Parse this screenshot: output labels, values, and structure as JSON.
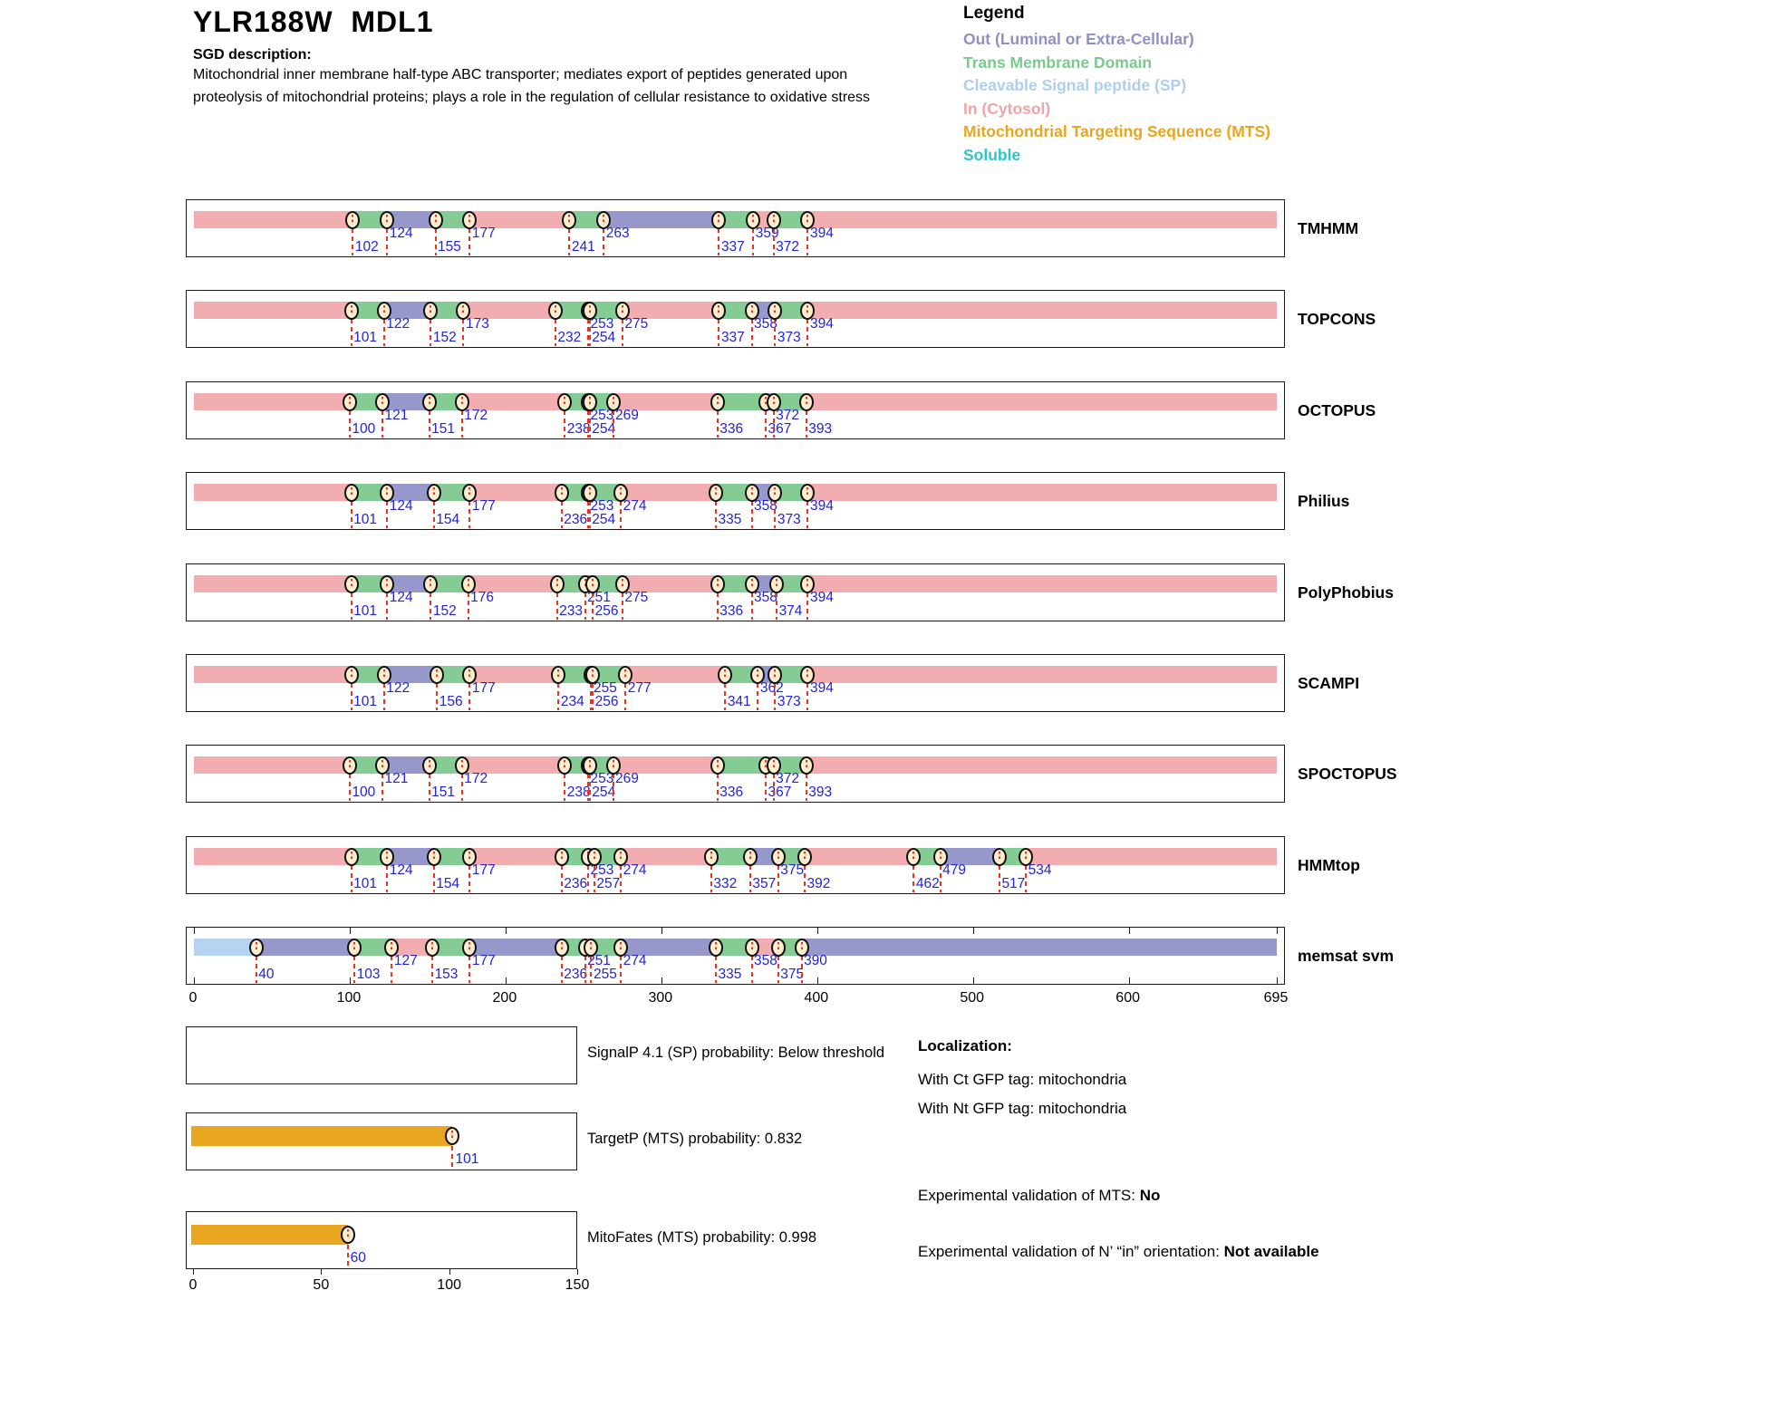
{
  "header": {
    "title": "YLR188W  MDL1",
    "sgd_label": "SGD description:",
    "description_lines": [
      "Mitochondrial inner membrane half-type ABC transporter; mediates export of peptides generated upon",
      "proteolysis of mitochondrial proteins; plays a role in the regulation of cellular resistance to oxidative stress"
    ]
  },
  "legend": {
    "title": "Legend",
    "items": [
      {
        "label": "Out (Luminal or Extra-Cellular)",
        "color": "#8F90C5"
      },
      {
        "label": "Trans Membrane Domain",
        "color": "#7BC98C"
      },
      {
        "label": "Cleavable Signal peptide (SP)",
        "color": "#AECEF0"
      },
      {
        "label": "In (Cytosol)",
        "color": "#F1A3A6"
      },
      {
        "label": "Mitochondrial Targeting Sequence (MTS)",
        "color": "#E9A51E"
      },
      {
        "label": "Soluble",
        "color": "#2EC5C9"
      }
    ]
  },
  "chart_data": {
    "type": "topology-tracks",
    "axis": {
      "min": 0,
      "max": 695,
      "ticks": [
        0,
        100,
        200,
        300,
        400,
        500,
        600,
        695
      ]
    },
    "palette": {
      "in": "#F2ADB1",
      "tm": "#84CC93",
      "out": "#9697CB",
      "sp": "#B7D3F2",
      "mts": "#E9A620"
    },
    "marker_style": {
      "fill": "#FAEDD0",
      "number_color": "#2323D7",
      "dash_color": "#EA3323"
    },
    "tracks": [
      {
        "name": "TMHMM",
        "segments": [
          [
            0,
            102,
            "in"
          ],
          [
            102,
            124,
            "tm"
          ],
          [
            124,
            155,
            "out"
          ],
          [
            155,
            177,
            "tm"
          ],
          [
            177,
            241,
            "in"
          ],
          [
            241,
            263,
            "tm"
          ],
          [
            263,
            337,
            "out"
          ],
          [
            337,
            359,
            "tm"
          ],
          [
            359,
            372,
            "in"
          ],
          [
            372,
            394,
            "tm"
          ],
          [
            394,
            695,
            "in"
          ]
        ],
        "markers": [
          [
            102,
            "l"
          ],
          [
            124,
            "h"
          ],
          [
            155,
            "l"
          ],
          [
            177,
            "h"
          ],
          [
            241,
            "l"
          ],
          [
            263,
            "h"
          ],
          [
            337,
            "l"
          ],
          [
            359,
            "h"
          ],
          [
            372,
            "l"
          ],
          [
            394,
            "h"
          ]
        ]
      },
      {
        "name": "TOPCONS",
        "segments": [
          [
            0,
            101,
            "in"
          ],
          [
            101,
            122,
            "tm"
          ],
          [
            122,
            152,
            "out"
          ],
          [
            152,
            173,
            "tm"
          ],
          [
            173,
            232,
            "in"
          ],
          [
            232,
            253,
            "tm"
          ],
          [
            253,
            254,
            "out"
          ],
          [
            254,
            275,
            "tm"
          ],
          [
            275,
            337,
            "in"
          ],
          [
            337,
            358,
            "tm"
          ],
          [
            358,
            373,
            "out"
          ],
          [
            373,
            394,
            "tm"
          ],
          [
            394,
            695,
            "in"
          ]
        ],
        "markers": [
          [
            101,
            "l"
          ],
          [
            122,
            "h"
          ],
          [
            152,
            "l"
          ],
          [
            173,
            "h"
          ],
          [
            232,
            "l"
          ],
          [
            253,
            "h"
          ],
          [
            254,
            "l"
          ],
          [
            275,
            "h"
          ],
          [
            337,
            "l"
          ],
          [
            358,
            "h"
          ],
          [
            373,
            "l"
          ],
          [
            394,
            "h"
          ]
        ]
      },
      {
        "name": "OCTOPUS",
        "segments": [
          [
            0,
            100,
            "in"
          ],
          [
            100,
            121,
            "tm"
          ],
          [
            121,
            151,
            "out"
          ],
          [
            151,
            172,
            "tm"
          ],
          [
            172,
            238,
            "in"
          ],
          [
            238,
            253,
            "tm"
          ],
          [
            253,
            254,
            "out"
          ],
          [
            254,
            269,
            "tm"
          ],
          [
            269,
            336,
            "in"
          ],
          [
            336,
            367,
            "tm"
          ],
          [
            367,
            372,
            "out"
          ],
          [
            372,
            393,
            "tm"
          ],
          [
            393,
            695,
            "in"
          ]
        ],
        "markers": [
          [
            100,
            "l"
          ],
          [
            121,
            "h"
          ],
          [
            151,
            "l"
          ],
          [
            172,
            "h"
          ],
          [
            238,
            "l"
          ],
          [
            253,
            "h"
          ],
          [
            254,
            "l"
          ],
          [
            269,
            "h"
          ],
          [
            336,
            "l"
          ],
          [
            367,
            "l"
          ],
          [
            372,
            "h"
          ],
          [
            393,
            "l"
          ]
        ]
      },
      {
        "name": "Philius",
        "segments": [
          [
            0,
            101,
            "in"
          ],
          [
            101,
            124,
            "tm"
          ],
          [
            124,
            154,
            "out"
          ],
          [
            154,
            177,
            "tm"
          ],
          [
            177,
            236,
            "in"
          ],
          [
            236,
            253,
            "tm"
          ],
          [
            253,
            254,
            "out"
          ],
          [
            254,
            274,
            "tm"
          ],
          [
            274,
            335,
            "in"
          ],
          [
            335,
            358,
            "tm"
          ],
          [
            358,
            373,
            "out"
          ],
          [
            373,
            394,
            "tm"
          ],
          [
            394,
            695,
            "in"
          ]
        ],
        "markers": [
          [
            101,
            "l"
          ],
          [
            124,
            "h"
          ],
          [
            154,
            "l"
          ],
          [
            177,
            "h"
          ],
          [
            236,
            "l"
          ],
          [
            253,
            "h"
          ],
          [
            254,
            "l"
          ],
          [
            274,
            "h"
          ],
          [
            335,
            "l"
          ],
          [
            358,
            "h"
          ],
          [
            373,
            "l"
          ],
          [
            394,
            "h"
          ]
        ]
      },
      {
        "name": "PolyPhobius",
        "segments": [
          [
            0,
            101,
            "in"
          ],
          [
            101,
            124,
            "tm"
          ],
          [
            124,
            152,
            "out"
          ],
          [
            152,
            176,
            "tm"
          ],
          [
            176,
            233,
            "in"
          ],
          [
            233,
            251,
            "tm"
          ],
          [
            251,
            256,
            "out"
          ],
          [
            256,
            275,
            "tm"
          ],
          [
            275,
            336,
            "in"
          ],
          [
            336,
            358,
            "tm"
          ],
          [
            358,
            374,
            "out"
          ],
          [
            374,
            394,
            "tm"
          ],
          [
            394,
            695,
            "in"
          ]
        ],
        "markers": [
          [
            101,
            "l"
          ],
          [
            124,
            "h"
          ],
          [
            152,
            "l"
          ],
          [
            176,
            "h"
          ],
          [
            233,
            "l"
          ],
          [
            251,
            "h"
          ],
          [
            256,
            "l"
          ],
          [
            275,
            "h"
          ],
          [
            336,
            "l"
          ],
          [
            358,
            "h"
          ],
          [
            374,
            "l"
          ],
          [
            394,
            "h"
          ]
        ]
      },
      {
        "name": "SCAMPI",
        "segments": [
          [
            0,
            101,
            "in"
          ],
          [
            101,
            122,
            "tm"
          ],
          [
            122,
            156,
            "out"
          ],
          [
            156,
            177,
            "tm"
          ],
          [
            177,
            234,
            "in"
          ],
          [
            234,
            255,
            "tm"
          ],
          [
            255,
            256,
            "out"
          ],
          [
            256,
            277,
            "tm"
          ],
          [
            277,
            341,
            "in"
          ],
          [
            341,
            362,
            "tm"
          ],
          [
            362,
            373,
            "out"
          ],
          [
            373,
            394,
            "tm"
          ],
          [
            394,
            695,
            "in"
          ]
        ],
        "markers": [
          [
            101,
            "l"
          ],
          [
            122,
            "h"
          ],
          [
            156,
            "l"
          ],
          [
            177,
            "h"
          ],
          [
            234,
            "l"
          ],
          [
            255,
            "h"
          ],
          [
            256,
            "l"
          ],
          [
            277,
            "h"
          ],
          [
            341,
            "l"
          ],
          [
            362,
            "h"
          ],
          [
            373,
            "l"
          ],
          [
            394,
            "h"
          ]
        ]
      },
      {
        "name": "SPOCTOPUS",
        "segments": [
          [
            0,
            100,
            "in"
          ],
          [
            100,
            121,
            "tm"
          ],
          [
            121,
            151,
            "out"
          ],
          [
            151,
            172,
            "tm"
          ],
          [
            172,
            238,
            "in"
          ],
          [
            238,
            253,
            "tm"
          ],
          [
            253,
            254,
            "out"
          ],
          [
            254,
            269,
            "tm"
          ],
          [
            269,
            336,
            "in"
          ],
          [
            336,
            367,
            "tm"
          ],
          [
            367,
            372,
            "out"
          ],
          [
            372,
            393,
            "tm"
          ],
          [
            393,
            695,
            "in"
          ]
        ],
        "markers": [
          [
            100,
            "l"
          ],
          [
            121,
            "h"
          ],
          [
            151,
            "l"
          ],
          [
            172,
            "h"
          ],
          [
            238,
            "l"
          ],
          [
            253,
            "h"
          ],
          [
            254,
            "l"
          ],
          [
            269,
            "h"
          ],
          [
            336,
            "l"
          ],
          [
            367,
            "l"
          ],
          [
            372,
            "h"
          ],
          [
            393,
            "l"
          ]
        ]
      },
      {
        "name": "HMMtop",
        "segments": [
          [
            0,
            101,
            "in"
          ],
          [
            101,
            124,
            "tm"
          ],
          [
            124,
            154,
            "out"
          ],
          [
            154,
            177,
            "tm"
          ],
          [
            177,
            236,
            "in"
          ],
          [
            236,
            253,
            "tm"
          ],
          [
            253,
            257,
            "out"
          ],
          [
            257,
            274,
            "tm"
          ],
          [
            274,
            332,
            "in"
          ],
          [
            332,
            357,
            "tm"
          ],
          [
            357,
            375,
            "out"
          ],
          [
            375,
            392,
            "tm"
          ],
          [
            392,
            462,
            "in"
          ],
          [
            462,
            479,
            "tm"
          ],
          [
            479,
            517,
            "out"
          ],
          [
            517,
            534,
            "tm"
          ],
          [
            534,
            695,
            "in"
          ]
        ],
        "markers": [
          [
            101,
            "l"
          ],
          [
            124,
            "h"
          ],
          [
            154,
            "l"
          ],
          [
            177,
            "h"
          ],
          [
            236,
            "l"
          ],
          [
            253,
            "h"
          ],
          [
            257,
            "l"
          ],
          [
            274,
            "h"
          ],
          [
            332,
            "l"
          ],
          [
            357,
            "l"
          ],
          [
            375,
            "h"
          ],
          [
            392,
            "l"
          ],
          [
            462,
            "l"
          ],
          [
            479,
            "h"
          ],
          [
            517,
            "l"
          ],
          [
            534,
            "h"
          ]
        ]
      },
      {
        "name": "memsat svm",
        "show_ticks": true,
        "segments": [
          [
            0,
            40,
            "sp"
          ],
          [
            40,
            103,
            "out"
          ],
          [
            103,
            127,
            "tm"
          ],
          [
            127,
            153,
            "in"
          ],
          [
            153,
            177,
            "tm"
          ],
          [
            177,
            236,
            "out"
          ],
          [
            236,
            251,
            "tm"
          ],
          [
            251,
            255,
            "in"
          ],
          [
            255,
            274,
            "tm"
          ],
          [
            274,
            335,
            "out"
          ],
          [
            335,
            358,
            "tm"
          ],
          [
            358,
            375,
            "in"
          ],
          [
            375,
            390,
            "tm"
          ],
          [
            390,
            695,
            "out"
          ]
        ],
        "markers": [
          [
            40,
            "l"
          ],
          [
            103,
            "l"
          ],
          [
            127,
            "h"
          ],
          [
            153,
            "l"
          ],
          [
            177,
            "h"
          ],
          [
            236,
            "l"
          ],
          [
            251,
            "h"
          ],
          [
            255,
            "l"
          ],
          [
            274,
            "h"
          ],
          [
            335,
            "l"
          ],
          [
            358,
            "h"
          ],
          [
            375,
            "l"
          ],
          [
            390,
            "h"
          ]
        ]
      }
    ],
    "panels": [
      {
        "label": "SignalP 4.1 (SP) probability: Below threshold"
      },
      {
        "label": "TargetP (MTS) probability: 0.832",
        "bar_end": 101,
        "marker": 101,
        "marker_label": "101"
      },
      {
        "label": "MitoFates (MTS) probability: 0.998",
        "bar_end": 60,
        "marker": 60,
        "marker_label": "60",
        "axis": true
      }
    ],
    "prob_axis": {
      "min": 0,
      "max": 150,
      "ticks": [
        0,
        50,
        100,
        150
      ]
    }
  },
  "info": {
    "localization_title": "Localization:",
    "lines": [
      "With Ct GFP tag: mitochondria",
      "With Nt GFP tag: mitochondria"
    ],
    "mts_label": "Experimental validation of MTS: ",
    "mts_value": "No",
    "orientation_label": "Experimental validation of N’ “in” orientation: ",
    "orientation_value": "Not available"
  }
}
